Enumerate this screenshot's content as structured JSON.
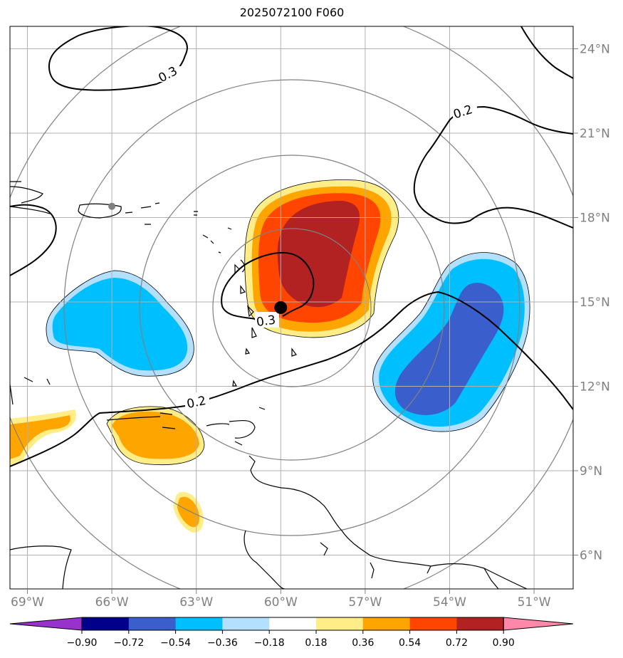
{
  "title": "2025072100 F060",
  "colors": {
    "axis_label": "#808080",
    "grid": "#b0b0b0",
    "ring": "#808080",
    "land_outline": "#000000",
    "center_marker": "#000000",
    "secondary_marker": "#808080"
  },
  "map": {
    "lon_labels": [
      "69°W",
      "66°W",
      "63°W",
      "60°W",
      "57°W",
      "54°W",
      "51°W"
    ],
    "lat_labels": [
      "24°N",
      "21°N",
      "18°N",
      "15°N",
      "12°N",
      "9°N",
      "6°N"
    ],
    "lon_values": [
      -69,
      -66,
      -63,
      -60,
      -57,
      -54,
      -51
    ],
    "lat_values": [
      24,
      21,
      18,
      15,
      12,
      9,
      6
    ],
    "center_lon": -60.0,
    "center_lat": 14.8,
    "secondary_point_lon": -66.0,
    "secondary_point_lat": 18.4
  },
  "contours": {
    "labels": [
      "0.3",
      "0.2",
      "0.2",
      "0.3"
    ]
  },
  "colorbar": {
    "tick_labels": [
      "−0.90",
      "−0.72",
      "−0.54",
      "−0.36",
      "−0.18",
      "0.18",
      "0.36",
      "0.54",
      "0.72",
      "0.90"
    ],
    "colors": [
      "#9932cc",
      "#00008b",
      "#3a5fcd",
      "#00bfff",
      "#b3e0ff",
      "#ffffff",
      "#ffee88",
      "#ffa500",
      "#ff4500",
      "#b22222",
      "#ff88aa"
    ]
  }
}
